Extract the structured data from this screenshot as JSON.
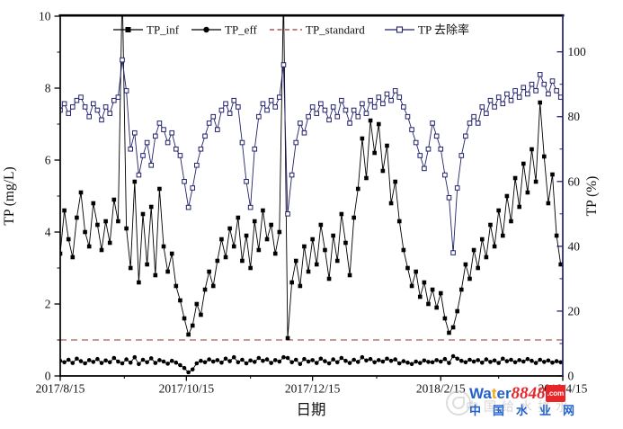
{
  "chart_data": {
    "type": "line",
    "title": "",
    "xlabel": "日期",
    "ylabel_left": "TP (mg/L)",
    "ylabel_right": "TP (%)",
    "grid": false,
    "legend": [
      "TP_inf",
      "TP_eff",
      "TP_standard",
      "TP 去除率"
    ],
    "legend_position": "top-inside",
    "x_axis": {
      "start_date": "2017/8/15",
      "end_day": 243,
      "major_ticks": [
        {
          "day": 0,
          "label": "2017/8/15"
        },
        {
          "day": 61,
          "label": "2017/10/15"
        },
        {
          "day": 122,
          "label": "2017/12/15"
        },
        {
          "day": 184,
          "label": "2018/2/15"
        },
        {
          "day": 243,
          "label": "2018/4/15"
        }
      ],
      "minor_tick_days": [
        31,
        92,
        153,
        212
      ]
    },
    "y_left": {
      "min": 0,
      "max": 10,
      "major_ticks": [
        0,
        2,
        4,
        6,
        8,
        10
      ],
      "minor_ticks": [
        1,
        3,
        5,
        7,
        9
      ],
      "color": "#000000"
    },
    "y_right": {
      "min": 0,
      "max": 100,
      "top_value": 111,
      "major_ticks": [
        0,
        20,
        40,
        60,
        80,
        100
      ],
      "minor_ticks": [
        10,
        30,
        50,
        70,
        90
      ],
      "color": "#22226b"
    },
    "reference_line": {
      "name": "TP_standard",
      "axis": "left",
      "value": 1.0,
      "color": "#993333",
      "style": "dashed"
    },
    "x_days": [
      0,
      2,
      4,
      6,
      8,
      10,
      12,
      14,
      16,
      18,
      20,
      22,
      24,
      26,
      28,
      30,
      32,
      34,
      36,
      38,
      40,
      42,
      44,
      46,
      48,
      50,
      52,
      54,
      56,
      58,
      60,
      62,
      64,
      66,
      68,
      70,
      72,
      74,
      76,
      78,
      80,
      82,
      84,
      86,
      88,
      90,
      92,
      94,
      96,
      98,
      100,
      102,
      104,
      106,
      108,
      110,
      112,
      114,
      116,
      118,
      120,
      122,
      124,
      126,
      128,
      130,
      132,
      134,
      136,
      138,
      140,
      142,
      144,
      146,
      148,
      150,
      152,
      154,
      156,
      158,
      160,
      162,
      164,
      166,
      168,
      170,
      172,
      174,
      176,
      178,
      180,
      182,
      184,
      186,
      188,
      190,
      192,
      194,
      196,
      198,
      200,
      202,
      204,
      206,
      208,
      210,
      212,
      214,
      216,
      218,
      220,
      222,
      224,
      226,
      228,
      230,
      232,
      234,
      236,
      238,
      240,
      242
    ],
    "series": [
      {
        "name": "TP_inf",
        "axis": "left",
        "unit": "mg/L",
        "marker": "filled-square",
        "color": "#000000",
        "values": [
          3.4,
          4.6,
          3.8,
          3.3,
          4.4,
          5.1,
          4.0,
          3.6,
          4.8,
          4.2,
          3.5,
          4.3,
          3.7,
          4.9,
          4.3,
          10.8,
          4.1,
          3.0,
          5.4,
          2.6,
          4.5,
          3.1,
          4.7,
          2.8,
          5.2,
          3.6,
          2.9,
          3.4,
          2.5,
          2.1,
          1.6,
          1.15,
          1.4,
          2.0,
          1.7,
          2.4,
          2.9,
          2.5,
          3.2,
          3.8,
          3.3,
          4.1,
          3.6,
          4.4,
          3.2,
          3.9,
          3.0,
          4.3,
          3.5,
          4.6,
          3.8,
          4.2,
          3.4,
          4.0,
          10.6,
          1.05,
          2.6,
          3.2,
          2.5,
          3.6,
          2.9,
          3.8,
          3.1,
          4.2,
          3.5,
          2.7,
          3.9,
          3.2,
          4.5,
          3.7,
          2.8,
          4.4,
          5.2,
          6.6,
          5.5,
          7.1,
          6.2,
          7.0,
          5.7,
          6.4,
          4.8,
          5.4,
          4.3,
          3.5,
          3.0,
          2.5,
          2.9,
          2.2,
          2.6,
          2.0,
          2.4,
          1.9,
          2.3,
          1.6,
          1.2,
          1.35,
          1.8,
          2.4,
          3.1,
          2.7,
          3.5,
          3.0,
          3.8,
          3.3,
          4.2,
          3.6,
          4.6,
          3.9,
          5.0,
          4.3,
          5.5,
          4.7,
          5.9,
          5.1,
          6.3,
          5.4,
          7.6,
          6.1,
          4.8,
          5.6,
          3.9,
          3.1
        ]
      },
      {
        "name": "TP_eff",
        "axis": "left",
        "unit": "mg/L",
        "marker": "filled-circle",
        "color": "#000000",
        "values": [
          0.42,
          0.38,
          0.45,
          0.36,
          0.48,
          0.41,
          0.35,
          0.44,
          0.39,
          0.47,
          0.36,
          0.43,
          0.38,
          0.5,
          0.4,
          0.35,
          0.46,
          0.37,
          0.52,
          0.33,
          0.45,
          0.38,
          0.49,
          0.36,
          0.44,
          0.4,
          0.34,
          0.42,
          0.37,
          0.3,
          0.22,
          0.1,
          0.18,
          0.35,
          0.42,
          0.38,
          0.46,
          0.4,
          0.44,
          0.37,
          0.48,
          0.41,
          0.52,
          0.38,
          0.45,
          0.35,
          0.43,
          0.39,
          0.5,
          0.42,
          0.46,
          0.36,
          0.44,
          0.4,
          0.52,
          0.5,
          0.38,
          0.45,
          0.33,
          0.47,
          0.4,
          0.44,
          0.36,
          0.48,
          0.41,
          0.35,
          0.46,
          0.38,
          0.5,
          0.42,
          0.36,
          0.45,
          0.39,
          0.52,
          0.43,
          0.47,
          0.38,
          0.44,
          0.4,
          0.48,
          0.42,
          0.46,
          0.35,
          0.41,
          0.37,
          0.33,
          0.4,
          0.36,
          0.43,
          0.39,
          0.38,
          0.44,
          0.4,
          0.47,
          0.36,
          0.55,
          0.48,
          0.42,
          0.38,
          0.45,
          0.4,
          0.44,
          0.37,
          0.46,
          0.39,
          0.43,
          0.36,
          0.48,
          0.41,
          0.45,
          0.38,
          0.44,
          0.4,
          0.47,
          0.42,
          0.36,
          0.45,
          0.39,
          0.43,
          0.37,
          0.41,
          0.38
        ]
      },
      {
        "name": "TP 去除率",
        "axis": "right",
        "unit": "%",
        "marker": "open-square",
        "color": "#22226b",
        "values": [
          82,
          84,
          81,
          83,
          85,
          86,
          83,
          80,
          84,
          82,
          79,
          83,
          81,
          85,
          86,
          97.5,
          88,
          70,
          75,
          62,
          68,
          72,
          65,
          74,
          78,
          76,
          72,
          75,
          70,
          68,
          60,
          52,
          58,
          65,
          70,
          74,
          78,
          80,
          76,
          82,
          84,
          81,
          85,
          83,
          72,
          60,
          52,
          70,
          80,
          84,
          82,
          85,
          83,
          86,
          96,
          50,
          62,
          72,
          78,
          75,
          80,
          83,
          81,
          84,
          82,
          79,
          83,
          80,
          85,
          82,
          78,
          82,
          80,
          84,
          81,
          85,
          83,
          86,
          84,
          87,
          85,
          88,
          86,
          83,
          80,
          76,
          72,
          68,
          64,
          70,
          78,
          74,
          70,
          62,
          55,
          38,
          58,
          68,
          74,
          78,
          80,
          78,
          83,
          81,
          85,
          83,
          86,
          84,
          87,
          85,
          88,
          86,
          89,
          87,
          90,
          88,
          93,
          90,
          87,
          91,
          88,
          86
        ]
      }
    ]
  },
  "watermark": {
    "brand_wa": "Wa",
    "brand_t": "t",
    "brand_er": "er",
    "brand_number": "8848",
    "brand_domain": ".com",
    "site_name": "中国水业网",
    "ghost_text": "中国给水排水",
    "colors": {
      "blue": "#2461c9",
      "yellow": "#f2a71b",
      "red": "#e8262a",
      "site_blue": "#2461c9"
    }
  }
}
